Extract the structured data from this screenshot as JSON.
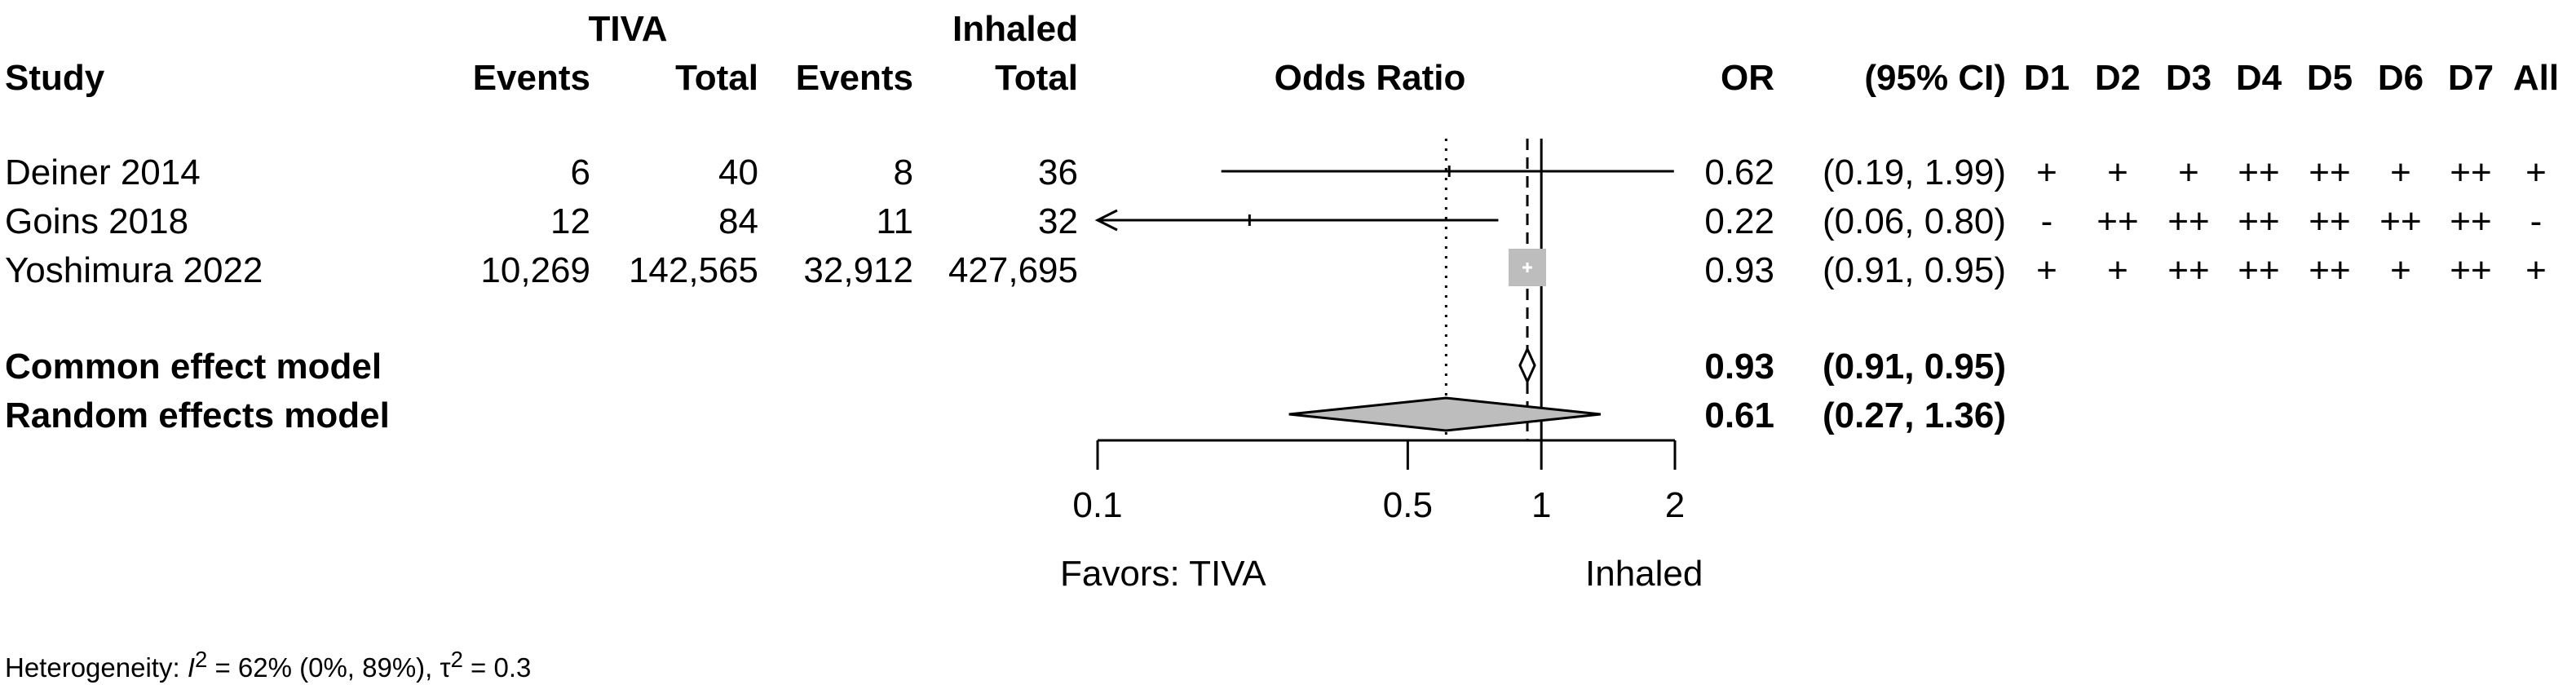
{
  "header": {
    "group1": "TIVA",
    "group2": "Inhaled",
    "study": "Study",
    "events1": "Events",
    "total1": "Total",
    "events2": "Events",
    "total2": "Total",
    "odds_ratio": "Odds Ratio",
    "or": "OR",
    "ci": "(95% CI)",
    "domains": [
      "D1",
      "D2",
      "D3",
      "D4",
      "D5",
      "D6",
      "D7",
      "All"
    ]
  },
  "studies": [
    {
      "name": "Deiner 2014",
      "events1": "6",
      "total1": "40",
      "events2": "8",
      "total2": "36",
      "or": "0.62",
      "ci": "(0.19, 1.99)",
      "rob": [
        "+",
        "+",
        "+",
        "++",
        "++",
        "+",
        "++",
        "+"
      ]
    },
    {
      "name": "Goins 2018",
      "events1": "12",
      "total1": "84",
      "events2": "11",
      "total2": "32",
      "or": "0.22",
      "ci": "(0.06, 0.80)",
      "rob": [
        "-",
        "++",
        "++",
        "++",
        "++",
        "++",
        "++",
        "-"
      ]
    },
    {
      "name": "Yoshimura 2022",
      "events1": "10,269",
      "total1": "142,565",
      "events2": "32,912",
      "total2": "427,695",
      "or": "0.93",
      "ci": "(0.91, 0.95)",
      "rob": [
        "+",
        "+",
        "++",
        "++",
        "++",
        "+",
        "++",
        "+"
      ]
    }
  ],
  "pooled": [
    {
      "name": "Common effect model",
      "or": "0.93",
      "ci": "(0.91, 0.95)"
    },
    {
      "name": "Random effects model",
      "or": "0.61",
      "ci": "(0.27, 1.36)"
    }
  ],
  "favors_left": "Favors: TIVA",
  "favors_right": "Inhaled",
  "heterogeneity": {
    "prefix": "Heterogeneity: ",
    "i2_symbol": "I",
    "i2_sup": "2",
    "i2_rest": " = 62% (0%, 89%), ",
    "tau": "τ",
    "tau_sup": "2",
    "tau_rest": " = 0.3"
  },
  "chart_data": {
    "type": "forest",
    "xscale": "log",
    "xlim": [
      0.1,
      2
    ],
    "ticks": [
      0.1,
      0.5,
      1,
      2
    ],
    "tick_labels": [
      "0.1",
      "0.5",
      "1",
      "2"
    ],
    "reference_line": 1,
    "studies": [
      {
        "name": "Deiner 2014",
        "or": 0.62,
        "lower": 0.19,
        "upper": 1.99,
        "clipped_left": false
      },
      {
        "name": "Goins 2018",
        "or": 0.22,
        "lower": 0.06,
        "upper": 0.8,
        "clipped_left": true
      },
      {
        "name": "Yoshimura 2022",
        "or": 0.93,
        "lower": 0.91,
        "upper": 0.95,
        "clipped_left": false
      }
    ],
    "common_effect": {
      "or": 0.93,
      "lower": 0.91,
      "upper": 0.95
    },
    "random_effects": {
      "or": 0.61,
      "lower": 0.27,
      "upper": 1.36
    },
    "square_color": "#bdbdbd",
    "diamond_color": "#bdbdbd"
  }
}
